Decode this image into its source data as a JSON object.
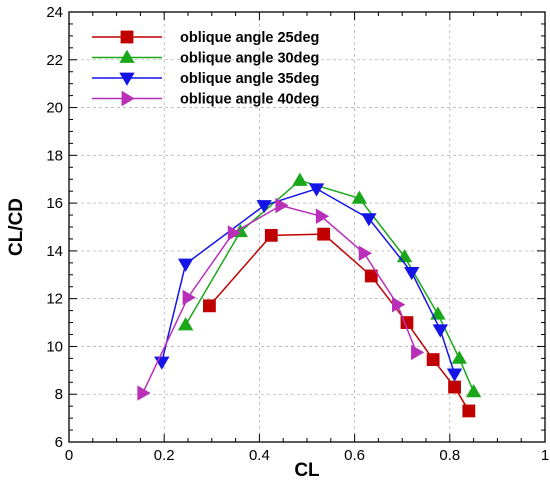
{
  "chart_data": {
    "type": "line",
    "xlabel": "CL",
    "ylabel": "CL/CD",
    "xlim": [
      0,
      1
    ],
    "ylim": [
      6,
      24
    ],
    "xticks": [
      0,
      0.2,
      0.4,
      0.6,
      0.8,
      1
    ],
    "yticks": [
      6,
      8,
      10,
      12,
      14,
      16,
      18,
      20,
      22,
      24
    ],
    "xtick_labels": [
      "0",
      "0.2",
      "0.4",
      "0.6",
      "0.8",
      "1"
    ],
    "ytick_labels": [
      "6",
      "8",
      "10",
      "12",
      "14",
      "16",
      "18",
      "20",
      "22",
      "24"
    ],
    "grid": true,
    "legend_position": "top-left",
    "series": [
      {
        "name": "oblique angle 25deg",
        "color": "#c00000",
        "marker": "square",
        "points": [
          [
            0.295,
            11.7
          ],
          [
            0.425,
            14.65
          ],
          [
            0.535,
            14.7
          ],
          [
            0.635,
            12.95
          ],
          [
            0.71,
            11.0
          ],
          [
            0.765,
            9.45
          ],
          [
            0.81,
            8.3
          ],
          [
            0.84,
            7.3
          ]
        ]
      },
      {
        "name": "oblique angle 30deg",
        "color": "#1aa81a",
        "marker": "triangle-up",
        "points": [
          [
            0.245,
            10.9
          ],
          [
            0.36,
            14.8
          ],
          [
            0.485,
            16.95
          ],
          [
            0.61,
            16.2
          ],
          [
            0.705,
            13.75
          ],
          [
            0.775,
            11.35
          ],
          [
            0.82,
            9.5
          ],
          [
            0.85,
            8.1
          ]
        ]
      },
      {
        "name": "oblique angle 35deg",
        "color": "#1414e6",
        "marker": "triangle-down",
        "points": [
          [
            0.195,
            9.35
          ],
          [
            0.245,
            13.45
          ],
          [
            0.41,
            15.9
          ],
          [
            0.52,
            16.6
          ],
          [
            0.63,
            15.35
          ],
          [
            0.72,
            13.1
          ],
          [
            0.78,
            10.7
          ],
          [
            0.81,
            8.85
          ]
        ]
      },
      {
        "name": "oblique angle 40deg",
        "color": "#b82fb8",
        "marker": "triangle-right",
        "points": [
          [
            0.155,
            8.05
          ],
          [
            0.25,
            12.05
          ],
          [
            0.345,
            14.75
          ],
          [
            0.445,
            15.9
          ],
          [
            0.53,
            15.45
          ],
          [
            0.62,
            13.9
          ],
          [
            0.69,
            11.75
          ],
          [
            0.73,
            9.75
          ]
        ]
      }
    ]
  }
}
